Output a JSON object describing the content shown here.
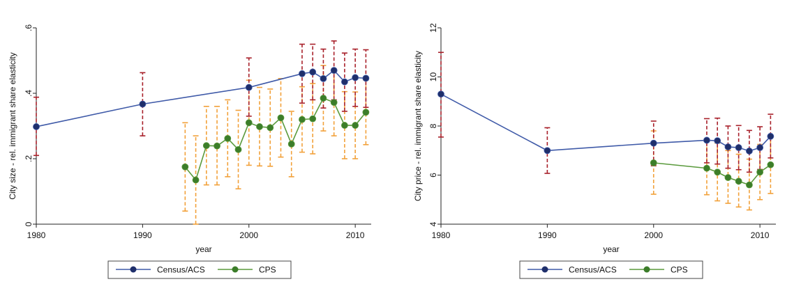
{
  "colors": {
    "census": "#1f2f6b",
    "census_line": "#3f5aa8",
    "census_ci": "#a8202a",
    "cps": "#3c7d2a",
    "cps_line": "#5a9a3c",
    "cps_ci": "#f2a13a"
  },
  "chart_data": [
    {
      "type": "line",
      "xlabel": "year",
      "ylabel": "City size - rel. immigrant share elasticity",
      "xlim": [
        1980,
        2011.5
      ],
      "ylim": [
        0,
        0.6
      ],
      "xticks": [
        1980,
        1990,
        2000,
        2010
      ],
      "xtick_labels": [
        "1980",
        "1990",
        "2000",
        "2010"
      ],
      "yticks": [
        0,
        0.2,
        0.4,
        0.6
      ],
      "ytick_labels": [
        "0",
        ".2",
        ".4",
        ".6"
      ],
      "grid": false,
      "legend_position": "bottom",
      "series": [
        {
          "name": "Census/ACS",
          "x": [
            1980,
            1990,
            2000,
            2005,
            2006,
            2007,
            2008,
            2009,
            2010,
            2011
          ],
          "y": [
            0.298,
            0.367,
            0.418,
            0.46,
            0.465,
            0.445,
            0.47,
            0.435,
            0.448,
            0.446
          ],
          "ci_low": [
            0.21,
            0.27,
            0.33,
            0.37,
            0.38,
            0.355,
            0.38,
            0.345,
            0.36,
            0.357
          ],
          "ci_high": [
            0.388,
            0.463,
            0.508,
            0.55,
            0.55,
            0.535,
            0.56,
            0.523,
            0.535,
            0.533
          ]
        },
        {
          "name": "CPS",
          "x": [
            1994,
            1995,
            1996,
            1997,
            1998,
            1999,
            2000,
            2001,
            2002,
            2003,
            2004,
            2005,
            2006,
            2007,
            2008,
            2009,
            2010,
            2011
          ],
          "y": [
            0.175,
            0.135,
            0.24,
            0.239,
            0.262,
            0.228,
            0.31,
            0.298,
            0.295,
            0.325,
            0.245,
            0.32,
            0.322,
            0.385,
            0.372,
            0.302,
            0.302,
            0.342
          ],
          "ci_low": [
            0.04,
            0.0,
            0.12,
            0.12,
            0.145,
            0.108,
            0.18,
            0.178,
            0.177,
            0.205,
            0.145,
            0.22,
            0.215,
            0.285,
            0.27,
            0.2,
            0.2,
            0.243
          ],
          "ci_high": [
            0.31,
            0.27,
            0.36,
            0.36,
            0.38,
            0.348,
            0.44,
            0.418,
            0.413,
            0.445,
            0.345,
            0.42,
            0.43,
            0.485,
            0.475,
            0.405,
            0.404,
            0.44
          ]
        }
      ]
    },
    {
      "type": "line",
      "xlabel": "year",
      "ylabel": "City price - rel. immigrant share elasticity",
      "xlim": [
        1980,
        2011.5
      ],
      "ylim": [
        4,
        12
      ],
      "xticks": [
        1980,
        1990,
        2000,
        2010
      ],
      "xtick_labels": [
        "1980",
        "1990",
        "2000",
        "2010"
      ],
      "yticks": [
        4,
        6,
        8,
        10,
        12
      ],
      "ytick_labels": [
        "4",
        "6",
        "8",
        "10",
        "12"
      ],
      "grid": false,
      "legend_position": "bottom",
      "series": [
        {
          "name": "Census/ACS",
          "x": [
            1980,
            1990,
            2000,
            2005,
            2006,
            2007,
            2008,
            2009,
            2010,
            2011
          ],
          "y": [
            9.3,
            7.0,
            7.3,
            7.42,
            7.4,
            7.15,
            7.12,
            6.98,
            7.12,
            7.58
          ],
          "ci_low": [
            7.55,
            6.07,
            6.38,
            6.5,
            6.45,
            6.28,
            6.22,
            6.12,
            6.23,
            6.7
          ],
          "ci_high": [
            11.0,
            7.93,
            8.2,
            8.3,
            8.32,
            8.0,
            8.02,
            7.82,
            7.97,
            8.48
          ]
        },
        {
          "name": "CPS",
          "x": [
            2000,
            2005,
            2006,
            2007,
            2008,
            2009,
            2010,
            2011
          ],
          "y": [
            6.5,
            6.28,
            6.12,
            5.9,
            5.75,
            5.6,
            6.12,
            6.42
          ],
          "ci_low": [
            5.22,
            5.2,
            4.95,
            4.85,
            4.7,
            4.58,
            5.0,
            5.25
          ],
          "ci_high": [
            7.8,
            7.4,
            7.3,
            7.0,
            6.85,
            6.65,
            7.25,
            7.6
          ]
        }
      ]
    }
  ]
}
